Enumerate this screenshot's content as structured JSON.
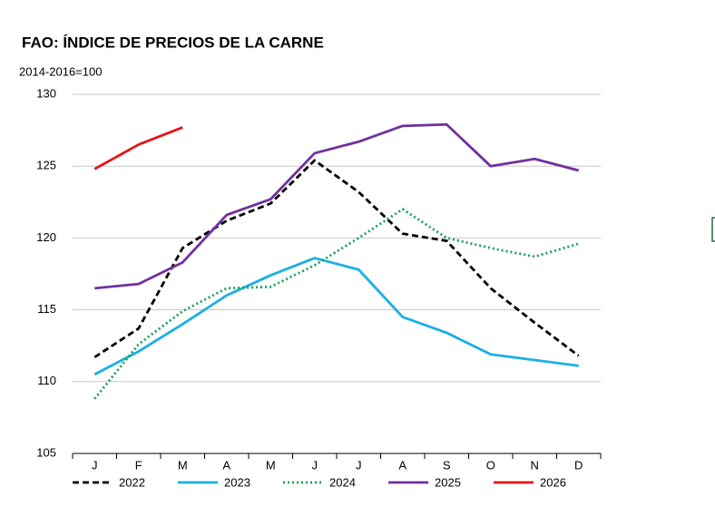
{
  "chart_data": {
    "type": "line",
    "title": "FAO: ÍNDICE DE PRECIOS DE LA CARNE",
    "subtitle": "2014-2016=100",
    "categories": [
      "J",
      "F",
      "M",
      "A",
      "M",
      "J",
      "J",
      "A",
      "S",
      "O",
      "N",
      "D"
    ],
    "ylim": [
      105,
      130
    ],
    "yticks": [
      105,
      110,
      115,
      120,
      125,
      130
    ],
    "grid": true,
    "legend": "bottom",
    "series": [
      {
        "name": "2022",
        "color": "#000000",
        "style": "dashed",
        "values": [
          111.7,
          113.7,
          119.3,
          121.2,
          122.4,
          125.4,
          123.2,
          120.3,
          119.8,
          116.5,
          114.1,
          111.8
        ]
      },
      {
        "name": "2023",
        "color": "#1aafe6",
        "style": "solid",
        "values": [
          110.5,
          112.1,
          114.0,
          116.0,
          117.4,
          118.6,
          117.8,
          114.5,
          113.4,
          111.9,
          111.5,
          111.1
        ]
      },
      {
        "name": "2024",
        "color": "#1e9e5a",
        "style": "dotted",
        "values": [
          108.8,
          112.6,
          114.9,
          116.5,
          116.6,
          118.1,
          120.0,
          122.0,
          120.0,
          119.3,
          118.7,
          119.6
        ]
      },
      {
        "name": "2025",
        "color": "#7030a0",
        "style": "solid",
        "values": [
          116.5,
          116.8,
          118.3,
          121.6,
          122.7,
          125.9,
          126.7,
          127.8,
          127.9,
          125.0,
          125.5,
          124.7
        ]
      },
      {
        "name": "2026",
        "color": "#e0161b",
        "style": "solid",
        "values": [
          124.8,
          126.5,
          127.7,
          null,
          null,
          null,
          null,
          null,
          null,
          null,
          null,
          null
        ]
      }
    ]
  }
}
